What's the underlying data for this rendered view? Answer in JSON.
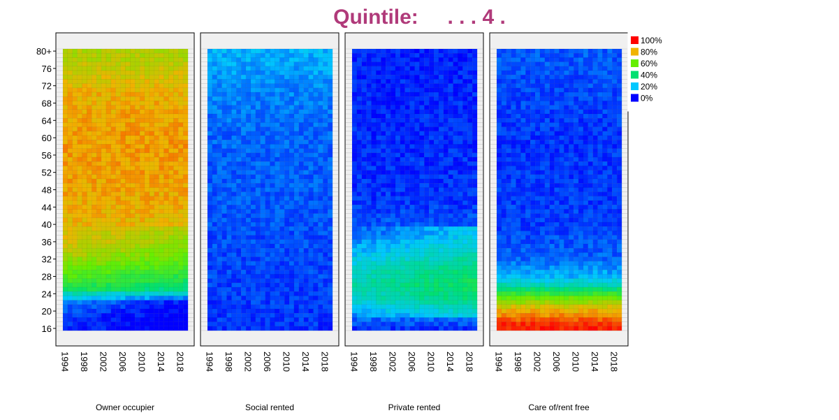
{
  "title": "Quintile:     . . . 4 .",
  "chart_data": {
    "type": "heatmap",
    "title": "Quintile:     . . . 4 .",
    "xlabel": "",
    "ylabel": "",
    "x_range": [
      1994,
      2019
    ],
    "y_range": [
      16,
      80
    ],
    "x_ticks": [
      "1994",
      "1998",
      "2002",
      "2006",
      "2010",
      "2014",
      "2018"
    ],
    "y_ticks": [
      "80+",
      "76",
      "72",
      "68",
      "64",
      "60",
      "56",
      "52",
      "48",
      "44",
      "40",
      "36",
      "32",
      "28",
      "24",
      "20",
      "16"
    ],
    "value_unit": "%",
    "panels": [
      {
        "name": "Owner occupier",
        "profile": [
          [
            16,
            5
          ],
          [
            20,
            8
          ],
          [
            22,
            12
          ],
          [
            23,
            22
          ],
          [
            24,
            32
          ],
          [
            25,
            45
          ],
          [
            27,
            53
          ],
          [
            30,
            62
          ],
          [
            33,
            70
          ],
          [
            36,
            76
          ],
          [
            40,
            79
          ],
          [
            50,
            82
          ],
          [
            60,
            83
          ],
          [
            70,
            80
          ],
          [
            80,
            70
          ]
        ]
      },
      {
        "name": "Social rented",
        "profile": [
          [
            16,
            5
          ],
          [
            24,
            6
          ],
          [
            40,
            8
          ],
          [
            60,
            10
          ],
          [
            70,
            13
          ],
          [
            80,
            18
          ]
        ]
      },
      {
        "name": "Private rented",
        "profile": [
          [
            16,
            5
          ],
          [
            18,
            10
          ],
          [
            20,
            18
          ],
          [
            23,
            28
          ],
          [
            26,
            32
          ],
          [
            30,
            27
          ],
          [
            34,
            18
          ],
          [
            38,
            10
          ],
          [
            45,
            5
          ],
          [
            80,
            3
          ]
        ]
      },
      {
        "name": "Care of/rent free",
        "profile": [
          [
            16,
            97
          ],
          [
            17,
            95
          ],
          [
            19,
            85
          ],
          [
            21,
            75
          ],
          [
            23,
            60
          ],
          [
            24,
            50
          ],
          [
            26,
            30
          ],
          [
            28,
            18
          ],
          [
            32,
            10
          ],
          [
            40,
            6
          ],
          [
            60,
            5
          ],
          [
            80,
            9
          ]
        ]
      }
    ]
  },
  "legend": [
    {
      "label": "100%",
      "color": "#ff0000"
    },
    {
      "label": "80%",
      "color": "#f0b400"
    },
    {
      "label": "60%",
      "color": "#66ee00"
    },
    {
      "label": "40%",
      "color": "#00e070"
    },
    {
      "label": "20%",
      "color": "#00c8ff"
    },
    {
      "label": "0%",
      "color": "#0000ff"
    }
  ]
}
